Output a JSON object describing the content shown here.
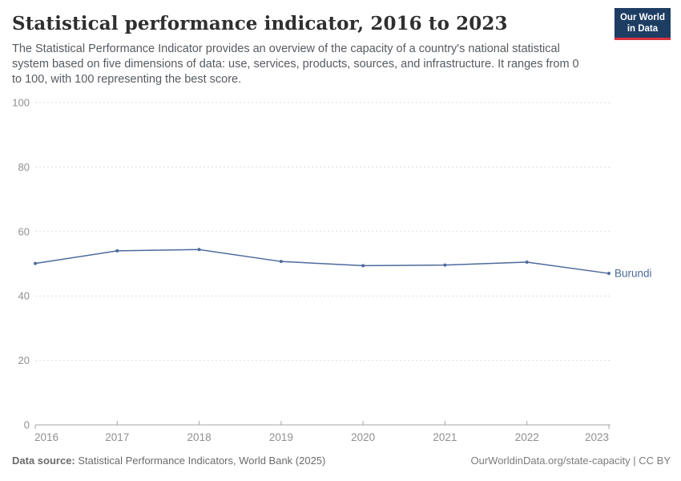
{
  "header": {
    "title": "Statistical performance indicator, 2016 to 2023",
    "subtitle": "The Statistical Performance Indicator provides an overview of the capacity of a country's national statistical system based on five dimensions of data: use, services, products, sources, and infrastructure. It ranges from 0 to 100, with 100 representing the best score."
  },
  "logo": {
    "line1": "Our World",
    "line2": "in Data",
    "background_color": "#1d3d63",
    "accent_color": "#d7333f"
  },
  "chart_data": {
    "type": "line",
    "title": "Statistical performance indicator, 2016 to 2023",
    "x": [
      2016,
      2017,
      2018,
      2019,
      2020,
      2021,
      2022,
      2023
    ],
    "series": [
      {
        "name": "Burundi",
        "values": [
          50.1,
          54.0,
          54.4,
          50.7,
          49.4,
          49.6,
          50.5,
          47.0
        ],
        "color": "#4c6a9c"
      }
    ],
    "xlabel": "",
    "ylabel": "",
    "ylim": [
      0,
      100
    ],
    "yticks": [
      0,
      20,
      40,
      60,
      80,
      100
    ],
    "grid": "horizontal-dashed",
    "legend_position": "end-of-line-label",
    "colors": {
      "gridline": "#dedede",
      "axis_line": "#a5a5a5",
      "tick_label": "#8f8f8f"
    }
  },
  "footer": {
    "datasource_label": "Data source:",
    "datasource_value": " Statistical Performance Indicators, World Bank (2025)",
    "credit": "OurWorldinData.org/state-capacity | CC BY"
  }
}
